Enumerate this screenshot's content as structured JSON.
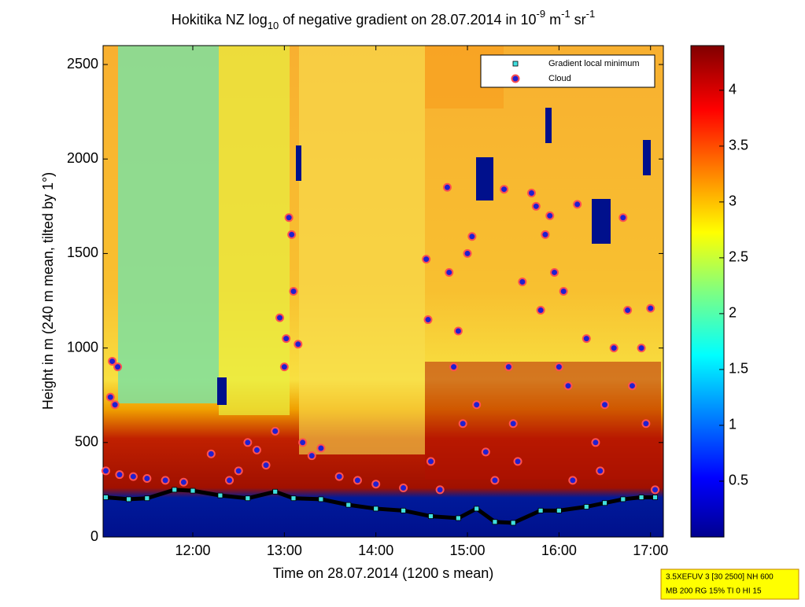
{
  "chart_data": {
    "type": "scatter",
    "title_parts": [
      {
        "text": "Hokitika NZ log",
        "shift": "base"
      },
      {
        "text": "10",
        "shift": "sub"
      },
      {
        "text": " of negative gradient on 28.07.2014 in 10",
        "shift": "base"
      },
      {
        "text": "-9",
        "shift": "super"
      },
      {
        "text": " m",
        "shift": "base"
      },
      {
        "text": "-1",
        "shift": "super"
      },
      {
        "text": " sr",
        "shift": "base"
      },
      {
        "text": "-1",
        "shift": "super"
      }
    ],
    "x_label": "Time on 28.07.2014 (1200 s mean)",
    "y_label": "Height in m (240 m mean, tilted by 1°)",
    "xlim": [
      11.02,
      17.14
    ],
    "xticks": [
      {
        "value": 12,
        "label": "12:00"
      },
      {
        "value": 13,
        "label": "13:00"
      },
      {
        "value": 14,
        "label": "14:00"
      },
      {
        "value": 15,
        "label": "15:00"
      },
      {
        "value": 16,
        "label": "16:00"
      },
      {
        "value": 17,
        "label": "17:00"
      }
    ],
    "ylim": [
      0,
      2600
    ],
    "yticks": [
      0,
      500,
      1000,
      1500,
      2000,
      2500
    ],
    "colorbar_lim": [
      0,
      4.4
    ],
    "colorbar_ticks": [
      0.5,
      1,
      1.5,
      2,
      2.5,
      3,
      3.5,
      4
    ],
    "legend": "upper right",
    "series": [
      {
        "name": "Gradient local minimum",
        "marker": "square",
        "color": "#40e0e0",
        "x": [
          11.05,
          11.3,
          11.5,
          11.8,
          12.0,
          12.3,
          12.6,
          12.9,
          13.1,
          13.4,
          13.7,
          14.0,
          14.3,
          14.6,
          14.9,
          15.1,
          15.3,
          15.5,
          15.8,
          16.0,
          16.3,
          16.5,
          16.7,
          16.9,
          17.05
        ],
        "values": [
          210,
          200,
          205,
          250,
          245,
          220,
          205,
          240,
          205,
          200,
          170,
          150,
          140,
          110,
          100,
          150,
          80,
          75,
          140,
          140,
          160,
          180,
          200,
          210,
          210
        ]
      },
      {
        "name": "Cloud",
        "marker": "circle",
        "color": "#2020d0",
        "x": [
          11.05,
          11.1,
          11.15,
          11.12,
          11.18,
          11.2,
          11.35,
          11.5,
          11.7,
          11.9,
          12.2,
          12.4,
          12.5,
          12.6,
          12.7,
          12.8,
          12.9,
          12.95,
          13.0,
          13.02,
          13.05,
          13.08,
          13.1,
          13.15,
          13.2,
          13.3,
          13.4,
          13.6,
          13.8,
          14.0,
          14.3,
          14.55,
          14.57,
          14.6,
          14.7,
          14.78,
          14.8,
          14.85,
          14.9,
          14.95,
          15.0,
          15.05,
          15.1,
          15.2,
          15.4,
          15.45,
          15.5,
          15.6,
          15.7,
          15.75,
          15.8,
          15.85,
          15.9,
          15.95,
          16.0,
          16.05,
          16.1,
          16.2,
          16.3,
          16.4,
          16.5,
          16.6,
          16.7,
          16.75,
          16.8,
          16.9,
          16.95,
          17.0,
          17.05,
          15.3,
          15.55,
          16.15,
          16.45
        ],
        "values": [
          350,
          740,
          700,
          930,
          900,
          330,
          320,
          310,
          300,
          290,
          440,
          300,
          350,
          500,
          460,
          380,
          560,
          1160,
          900,
          1050,
          1690,
          1600,
          1300,
          1020,
          500,
          430,
          470,
          320,
          300,
          280,
          260,
          1470,
          1150,
          400,
          250,
          1850,
          1400,
          900,
          1090,
          600,
          1500,
          1590,
          700,
          450,
          1840,
          900,
          600,
          1350,
          1820,
          1750,
          1200,
          1600,
          1700,
          1400,
          900,
          1300,
          800,
          1760,
          1050,
          500,
          700,
          1000,
          1690,
          1200,
          800,
          1000,
          600,
          1210,
          250,
          300,
          400,
          300,
          350
        ]
      }
    ],
    "annotation_lines": [
      "3.5XEFUV 3 [30 2500] NH 600",
      "MB 200 RG 15% TI 0 HI 15"
    ]
  }
}
